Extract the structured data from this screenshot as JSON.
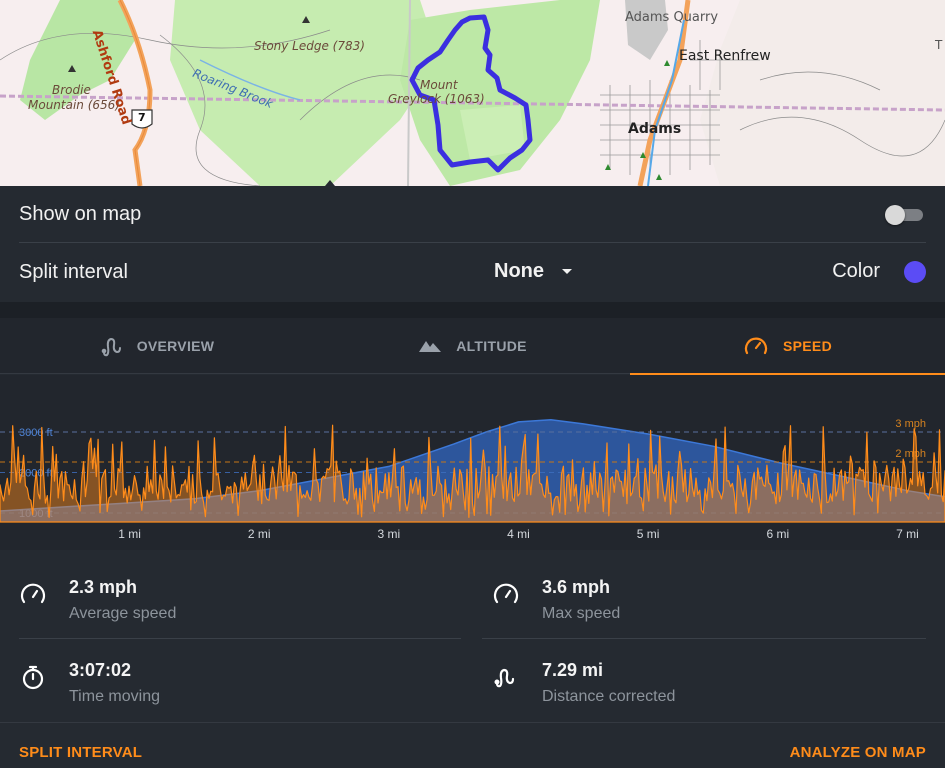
{
  "map": {
    "labels": {
      "adams_quarry": "Adams Quarry",
      "east_renfrew": "East Renfrew",
      "adams": "Adams",
      "stony_ledge": "Stony Ledge (783)",
      "mount": "Mount",
      "greylock": "Greylock (1063)",
      "brodie": "Brodie",
      "brodie_mountain": "Mountain (656)",
      "ashford_road": "Ashford Road",
      "roaring_brook": "Roaring Brook",
      "route_shield": "7",
      "edge_letter": "T"
    },
    "track_color": "#3b2fe0"
  },
  "settings": {
    "show_on_map_label": "Show on map",
    "show_on_map_enabled": false,
    "split_interval_label": "Split interval",
    "split_interval_value": "None",
    "color_label": "Color",
    "color_value": "#5b4cf5"
  },
  "tabs": [
    {
      "label": "OVERVIEW",
      "icon": "route-icon",
      "active": false
    },
    {
      "label": "ALTITUDE",
      "icon": "mountain-icon",
      "active": false
    },
    {
      "label": "SPEED",
      "icon": "speedometer-icon",
      "active": true
    }
  ],
  "accent_color": "#ff8c1a",
  "chart_data": {
    "type": "area",
    "x_unit": "mi",
    "x_ticks": [
      "1 mi",
      "2 mi",
      "3 mi",
      "4 mi",
      "5 mi",
      "6 mi",
      "7 mi"
    ],
    "xlim": [
      0,
      7.29
    ],
    "left_axis": {
      "ticks": [
        "3000 ft",
        "2000 ft",
        "1000 ft"
      ],
      "values": [
        3000,
        2000,
        1000
      ]
    },
    "right_axis": {
      "ticks": [
        "3 mph",
        "2 mph"
      ],
      "values": [
        3,
        2
      ]
    },
    "series": [
      {
        "kind": "altitude",
        "color": "#2f5fb0",
        "x": [
          0,
          0.5,
          1.0,
          1.5,
          2.0,
          2.5,
          3.0,
          3.5,
          3.75,
          4.0,
          4.25,
          4.5,
          5.0,
          5.5,
          6.0,
          6.5,
          7.0,
          7.29
        ],
        "y": [
          1050,
          1150,
          1250,
          1350,
          1550,
          1850,
          2150,
          2700,
          3000,
          3250,
          3300,
          3200,
          2950,
          2650,
          2250,
          1900,
          1550,
          1400
        ]
      },
      {
        "kind": "speed",
        "color": "#ff8c1a",
        "note_range_mph": [
          0,
          3.3
        ]
      }
    ]
  },
  "stats": [
    {
      "value": "2.3 mph",
      "label": "Average speed",
      "icon": "speedometer-icon"
    },
    {
      "value": "3.6 mph",
      "label": "Max speed",
      "icon": "speedometer-icon"
    },
    {
      "value": "3:07:02",
      "label": "Time moving",
      "icon": "stopwatch-icon"
    },
    {
      "value": "7.29 mi",
      "label": "Distance corrected",
      "icon": "route-icon"
    }
  ],
  "footer": {
    "split_interval_button": "SPLIT INTERVAL",
    "analyze_button": "ANALYZE ON MAP"
  }
}
